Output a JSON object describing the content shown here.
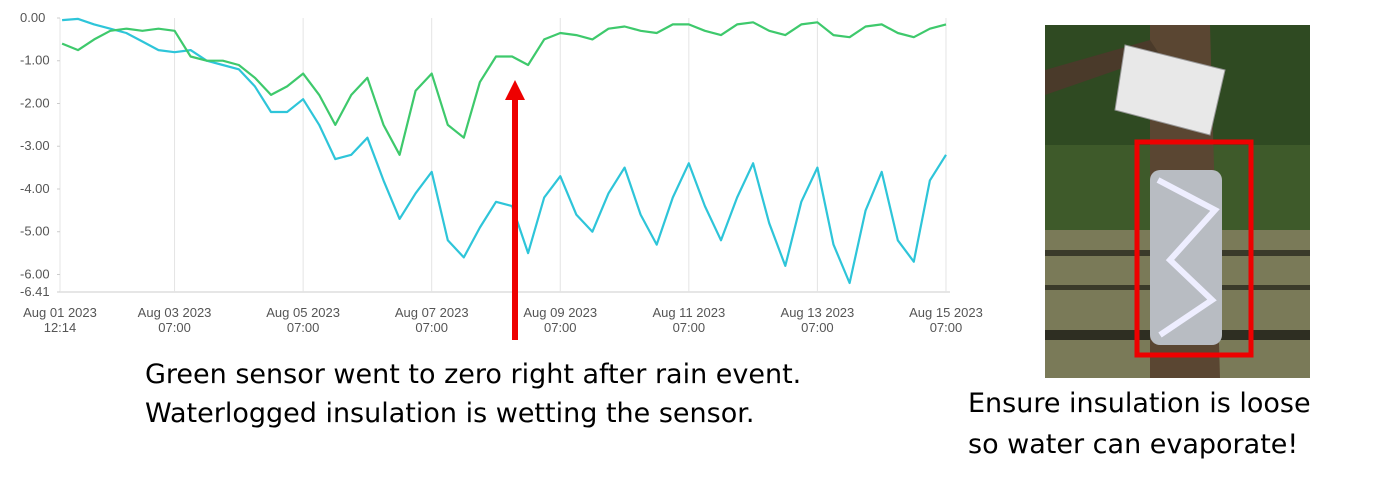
{
  "chart_data": {
    "type": "line",
    "xlim": [
      "2023-08-01T12:14",
      "2023-08-15T08:30"
    ],
    "xticks": [
      {
        "value": "2023-08-01T12:14",
        "label": [
          "Aug 01 2023",
          "12:14"
        ]
      },
      {
        "value": "2023-08-03T07:00",
        "label": [
          "Aug 03 2023",
          "07:00"
        ]
      },
      {
        "value": "2023-08-05T07:00",
        "label": [
          "Aug 05 2023",
          "07:00"
        ]
      },
      {
        "value": "2023-08-07T07:00",
        "label": [
          "Aug 07 2023",
          "07:00"
        ]
      },
      {
        "value": "2023-08-09T07:00",
        "label": [
          "Aug 09 2023",
          "07:00"
        ]
      },
      {
        "value": "2023-08-11T07:00",
        "label": [
          "Aug 11 2023",
          "07:00"
        ]
      },
      {
        "value": "2023-08-13T07:00",
        "label": [
          "Aug 13 2023",
          "07:00"
        ]
      },
      {
        "value": "2023-08-15T07:00",
        "label": [
          "Aug 15 2023",
          "07:00"
        ]
      }
    ],
    "ylim": [
      -6.41,
      0
    ],
    "yticks": [
      {
        "value": 0,
        "label": "0.00"
      },
      {
        "value": -1,
        "label": "-1.00"
      },
      {
        "value": -2,
        "label": "-2.00"
      },
      {
        "value": -3,
        "label": "-3.00"
      },
      {
        "value": -4,
        "label": "-4.00"
      },
      {
        "value": -5,
        "label": "-5.00"
      },
      {
        "value": -6,
        "label": "-6.00"
      },
      -6.41
    ],
    "grid": "x",
    "x": [
      "2023-08-01T13:00",
      "2023-08-01T19:00",
      "2023-08-02T01:00",
      "2023-08-02T07:00",
      "2023-08-02T13:00",
      "2023-08-02T19:00",
      "2023-08-03T01:00",
      "2023-08-03T07:00",
      "2023-08-03T13:00",
      "2023-08-03T19:00",
      "2023-08-04T01:00",
      "2023-08-04T07:00",
      "2023-08-04T13:00",
      "2023-08-04T19:00",
      "2023-08-05T01:00",
      "2023-08-05T07:00",
      "2023-08-05T13:00",
      "2023-08-05T19:00",
      "2023-08-06T01:00",
      "2023-08-06T07:00",
      "2023-08-06T13:00",
      "2023-08-06T19:00",
      "2023-08-07T01:00",
      "2023-08-07T07:00",
      "2023-08-07T13:00",
      "2023-08-07T19:00",
      "2023-08-08T01:00",
      "2023-08-08T07:00",
      "2023-08-08T13:00",
      "2023-08-08T19:00",
      "2023-08-09T01:00",
      "2023-08-09T07:00",
      "2023-08-09T13:00",
      "2023-08-09T19:00",
      "2023-08-10T01:00",
      "2023-08-10T07:00",
      "2023-08-10T13:00",
      "2023-08-10T19:00",
      "2023-08-11T01:00",
      "2023-08-11T07:00",
      "2023-08-11T13:00",
      "2023-08-11T19:00",
      "2023-08-12T01:00",
      "2023-08-12T07:00",
      "2023-08-12T13:00",
      "2023-08-12T19:00",
      "2023-08-13T01:00",
      "2023-08-13T07:00",
      "2023-08-13T13:00",
      "2023-08-13T19:00",
      "2023-08-14T01:00",
      "2023-08-14T07:00",
      "2023-08-14T13:00",
      "2023-08-14T19:00",
      "2023-08-15T01:00",
      "2023-08-15T07:00"
    ],
    "series": [
      {
        "color": "#2ec5d9",
        "values": [
          -0.05,
          -0.02,
          -0.15,
          -0.25,
          -0.35,
          -0.55,
          -0.75,
          -0.8,
          -0.75,
          -1.0,
          -1.1,
          -1.2,
          -1.6,
          -2.2,
          -2.2,
          -1.9,
          -2.5,
          -3.3,
          -3.2,
          -2.8,
          -3.8,
          -4.7,
          -4.1,
          -3.6,
          -5.2,
          -5.6,
          -4.9,
          -4.3,
          -4.4,
          -5.5,
          -4.2,
          -3.7,
          -4.6,
          -5.0,
          -4.1,
          -3.5,
          -4.6,
          -5.3,
          -4.2,
          -3.4,
          -4.4,
          -5.2,
          -4.2,
          -3.4,
          -4.8,
          -5.8,
          -4.3,
          -3.5,
          -5.3,
          -6.2,
          -4.5,
          -3.6,
          -5.2,
          -5.7,
          -3.8,
          -3.2
        ]
      },
      {
        "color": "#3ec96c",
        "values": [
          -0.6,
          -0.75,
          -0.5,
          -0.3,
          -0.25,
          -0.3,
          -0.25,
          -0.3,
          -0.9,
          -1.0,
          -1.0,
          -1.1,
          -1.4,
          -1.8,
          -1.6,
          -1.3,
          -1.8,
          -2.5,
          -1.8,
          -1.4,
          -2.5,
          -3.2,
          -1.7,
          -1.3,
          -2.5,
          -2.8,
          -1.5,
          -0.9,
          -0.9,
          -1.1,
          -0.5,
          -0.35,
          -0.4,
          -0.5,
          -0.25,
          -0.2,
          -0.3,
          -0.35,
          -0.15,
          -0.15,
          -0.3,
          -0.4,
          -0.15,
          -0.1,
          -0.3,
          -0.4,
          -0.15,
          -0.1,
          -0.4,
          -0.45,
          -0.2,
          -0.15,
          -0.35,
          -0.45,
          -0.25,
          -0.15
        ]
      }
    ],
    "annotations": [
      [
        "Green sensor went to zero right after rain event.",
        "Waterlogged insulation is wetting the sensor."
      ],
      [
        "Ensure insulation is loose",
        "so water can evaporate!"
      ]
    ]
  }
}
